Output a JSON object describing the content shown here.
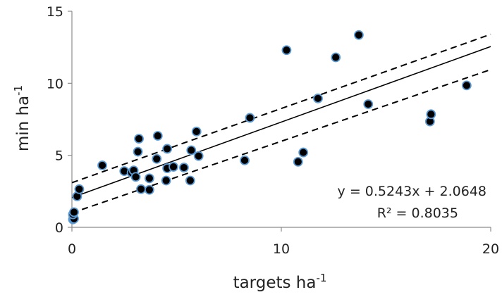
{
  "chart_data": {
    "type": "scatter",
    "xlabel": {
      "base": "targets ha",
      "sup": "-1"
    },
    "ylabel": {
      "base": "min ha",
      "sup": "-1"
    },
    "xlim": [
      0,
      20
    ],
    "ylim": [
      0,
      15
    ],
    "xticks": [
      "0",
      "10",
      "20"
    ],
    "yticks": [
      "0",
      "5",
      "10",
      "15"
    ],
    "grid": false,
    "point_color": "#000000",
    "point_edge_color": "#5b9bd5",
    "annotations": {
      "equation": "y = 0.5243x + 2.0648",
      "r2": "R² = 0.8035"
    },
    "points": [
      {
        "x": 0.05,
        "y": 0.55
      },
      {
        "x": 0.1,
        "y": 0.6
      },
      {
        "x": 0.05,
        "y": 0.9
      },
      {
        "x": 0.1,
        "y": 1.05
      },
      {
        "x": 0.25,
        "y": 2.15
      },
      {
        "x": 0.35,
        "y": 2.65
      },
      {
        "x": 1.45,
        "y": 4.3
      },
      {
        "x": 2.5,
        "y": 3.9
      },
      {
        "x": 2.85,
        "y": 3.8
      },
      {
        "x": 2.95,
        "y": 3.95
      },
      {
        "x": 3.05,
        "y": 3.5
      },
      {
        "x": 3.15,
        "y": 5.25
      },
      {
        "x": 3.2,
        "y": 6.15
      },
      {
        "x": 3.3,
        "y": 2.65
      },
      {
        "x": 3.7,
        "y": 3.4
      },
      {
        "x": 3.7,
        "y": 2.6
      },
      {
        "x": 4.05,
        "y": 4.75
      },
      {
        "x": 4.1,
        "y": 6.35
      },
      {
        "x": 4.5,
        "y": 3.25
      },
      {
        "x": 4.55,
        "y": 5.45
      },
      {
        "x": 4.55,
        "y": 4.1
      },
      {
        "x": 4.85,
        "y": 4.2
      },
      {
        "x": 5.35,
        "y": 4.15
      },
      {
        "x": 5.65,
        "y": 3.25
      },
      {
        "x": 5.7,
        "y": 5.35
      },
      {
        "x": 5.95,
        "y": 6.65
      },
      {
        "x": 6.05,
        "y": 4.95
      },
      {
        "x": 8.25,
        "y": 4.65
      },
      {
        "x": 8.5,
        "y": 7.6
      },
      {
        "x": 10.25,
        "y": 12.3
      },
      {
        "x": 10.8,
        "y": 4.55
      },
      {
        "x": 11.05,
        "y": 5.2
      },
      {
        "x": 11.75,
        "y": 8.95
      },
      {
        "x": 12.6,
        "y": 11.8
      },
      {
        "x": 13.7,
        "y": 13.35
      },
      {
        "x": 14.15,
        "y": 8.55
      },
      {
        "x": 17.1,
        "y": 7.35
      },
      {
        "x": 17.15,
        "y": 7.85
      },
      {
        "x": 18.85,
        "y": 9.85
      }
    ],
    "regression": {
      "slope": 0.5243,
      "intercept": 2.0648,
      "x_range": [
        0,
        20
      ]
    },
    "confidence_bands": [
      {
        "from": [
          0,
          3.1
        ],
        "to": [
          20,
          13.4
        ]
      },
      {
        "from": [
          0,
          1.0
        ],
        "to": [
          20,
          10.95
        ]
      }
    ]
  }
}
